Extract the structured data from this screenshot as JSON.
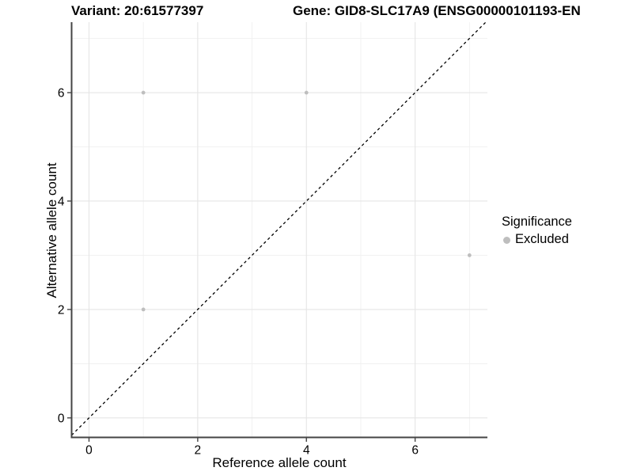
{
  "chart_data": {
    "type": "scatter",
    "titles": {
      "left": "Variant: 20:61577397",
      "right": "Gene: GID8-SLC17A9 (ENSG00000101193-EN"
    },
    "xlabel": "Reference allele count",
    "ylabel": "Alternative allele count",
    "xlim": [
      -0.32,
      7.33
    ],
    "ylim": [
      -0.36,
      7.3
    ],
    "x_major_ticks": [
      0,
      2,
      4,
      6
    ],
    "x_minor_ticks": [
      1,
      3,
      5,
      7
    ],
    "y_major_ticks": [
      0,
      2,
      4,
      6
    ],
    "y_minor_ticks": [
      1,
      3,
      5,
      7
    ],
    "grid": true,
    "legend_position": "right",
    "legend": {
      "title": "Significance"
    },
    "series": [
      {
        "name": "Excluded",
        "color": "#bebebe",
        "marker": "circle",
        "points": [
          [
            1,
            6
          ],
          [
            4,
            6
          ],
          [
            1,
            2
          ],
          [
            7,
            3
          ]
        ]
      }
    ],
    "reference_line": {
      "type": "identity",
      "equation": "y = x",
      "style": "dashed",
      "color": "#000000"
    },
    "colors": {
      "background": "#ffffff",
      "grid_major": "#e5e5e5",
      "grid_minor": "#f0f0f0",
      "axis": "#444444",
      "text": "#000000"
    }
  }
}
